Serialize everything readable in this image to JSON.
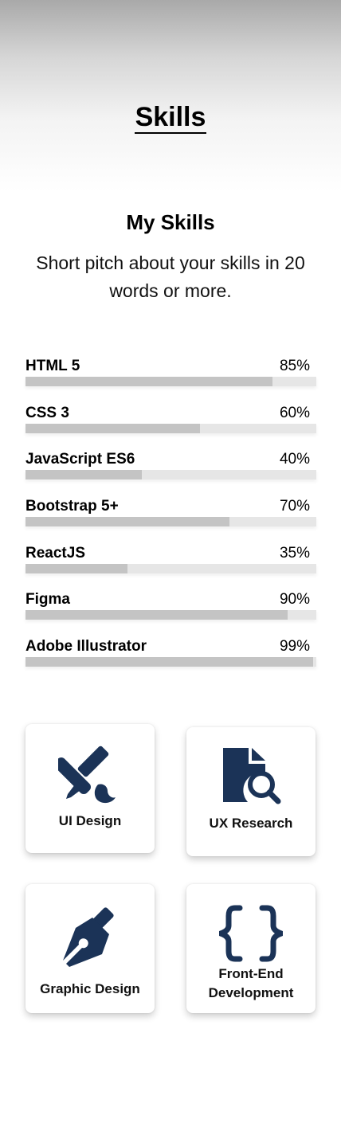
{
  "header": {
    "title": "Skills"
  },
  "intro": {
    "heading": "My Skills",
    "pitch": "Short pitch about your skills in 20 words or more."
  },
  "skills": [
    {
      "name": "HTML 5",
      "percent_label": "85%",
      "level": 85
    },
    {
      "name": "CSS 3",
      "percent_label": "60%",
      "level": 60
    },
    {
      "name": "JavaScript ES6",
      "percent_label": "40%",
      "level": 40
    },
    {
      "name": "Bootstrap 5+",
      "percent_label": "70%",
      "level": 70
    },
    {
      "name": "ReactJS",
      "percent_label": "35%",
      "level": 35
    },
    {
      "name": "Figma",
      "percent_label": "90%",
      "level": 90
    },
    {
      "name": "Adobe Illustrator",
      "percent_label": "99%",
      "level": 99
    }
  ],
  "services": [
    {
      "label": "UI Design",
      "icon": "pencil-brush-icon"
    },
    {
      "label": "UX Research",
      "icon": "file-search-icon"
    },
    {
      "label": "Graphic Design",
      "icon": "pen-nib-icon"
    },
    {
      "label": "Front-End Development",
      "icon": "curly-braces-icon"
    }
  ],
  "colors": {
    "icon": "#1b3357",
    "bar_fill": "#c4c4c4",
    "bar_track": "#e6e6e6"
  }
}
